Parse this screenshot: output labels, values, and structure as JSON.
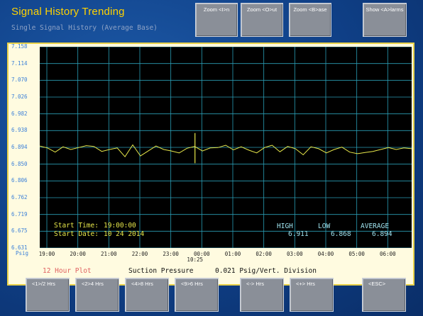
{
  "header": {
    "title": "Signal History Trending",
    "subtitle": "Single Signal History (Average Base)"
  },
  "top_buttons": [
    {
      "label": "Zoom <I>n"
    },
    {
      "label": "Zoom <O>ut"
    },
    {
      "label": "Zoom <B>ase"
    },
    {
      "label": "Show <A>larms"
    }
  ],
  "bottom_buttons": [
    {
      "label": "<1>/2 Hrs"
    },
    {
      "label": "<2>4 Hrs"
    },
    {
      "label": "<4>8 Hrs"
    },
    {
      "label": "<9>6 Hrs"
    },
    {
      "label": "<-> Hrs"
    },
    {
      "label": "<+> Hrs"
    },
    {
      "label": "<ESC>"
    }
  ],
  "chart_data": {
    "type": "line",
    "unit_label": "Psig",
    "y_ticks": [
      "7.158",
      "7.114",
      "7.070",
      "7.026",
      "6.982",
      "6.938",
      "6.894",
      "6.850",
      "6.806",
      "6.762",
      "6.719",
      "6.675",
      "6.631"
    ],
    "ylim": [
      6.631,
      7.158
    ],
    "x_ticks": [
      "19:00",
      "20:00",
      "21:00",
      "22:00",
      "23:00",
      "00:00",
      "01:00",
      "02:00",
      "03:00",
      "04:00",
      "05:00",
      "06:00"
    ],
    "cursor_label": "10:25",
    "cursor_x_hours": 4.78,
    "x_range_hours": [
      0,
      12
    ],
    "series": [
      {
        "color": "#e8e84a",
        "x_hours": [
          0,
          0.25,
          0.5,
          0.75,
          1,
          1.25,
          1.5,
          1.75,
          2,
          2.25,
          2.5,
          2.75,
          3,
          3.25,
          3.5,
          3.75,
          4,
          4.25,
          4.5,
          4.75,
          5,
          5.25,
          5.5,
          5.75,
          6,
          6.25,
          6.5,
          6.75,
          7,
          7.25,
          7.5,
          7.75,
          8,
          8.25,
          8.5,
          8.75,
          9,
          9.25,
          9.5,
          9.75,
          10,
          10.25,
          10.5,
          10.75,
          11,
          11.25,
          11.5,
          11.75,
          12
        ],
        "values": [
          6.898,
          6.893,
          6.882,
          6.896,
          6.889,
          6.894,
          6.899,
          6.897,
          6.884,
          6.889,
          6.893,
          6.87,
          6.901,
          6.872,
          6.885,
          6.898,
          6.889,
          6.885,
          6.88,
          6.892,
          6.897,
          6.885,
          6.893,
          6.894,
          6.9,
          6.888,
          6.896,
          6.887,
          6.88,
          6.894,
          6.9,
          6.883,
          6.897,
          6.891,
          6.875,
          6.896,
          6.891,
          6.88,
          6.889,
          6.895,
          6.882,
          6.878,
          6.881,
          6.884,
          6.889,
          6.894,
          6.889,
          6.893,
          6.891
        ]
      }
    ],
    "grid": true
  },
  "info": {
    "start_time_label": "Start Time:",
    "start_time_value": "19:00:00",
    "start_date_label": "Start Date:",
    "start_date_value": "10 24 2014",
    "high_label": "HIGH",
    "high_value": "6.911",
    "low_label": "LOW",
    "low_value": "6.868",
    "average_label": "AVERAGE",
    "average_value": "6.894"
  },
  "footer": {
    "plot_span": "12 Hour Plot",
    "signal_name": "Suction Pressure",
    "division": "0.021 Psig/Vert. Division"
  },
  "colors": {
    "title": "#ffd200",
    "plot_background": "#000000",
    "grid": "#2a9db5",
    "trace": "#e8e84a",
    "info_yellow": "#e8e84a",
    "info_cyan": "#9fe3ef",
    "plot_span": "#e06060"
  }
}
